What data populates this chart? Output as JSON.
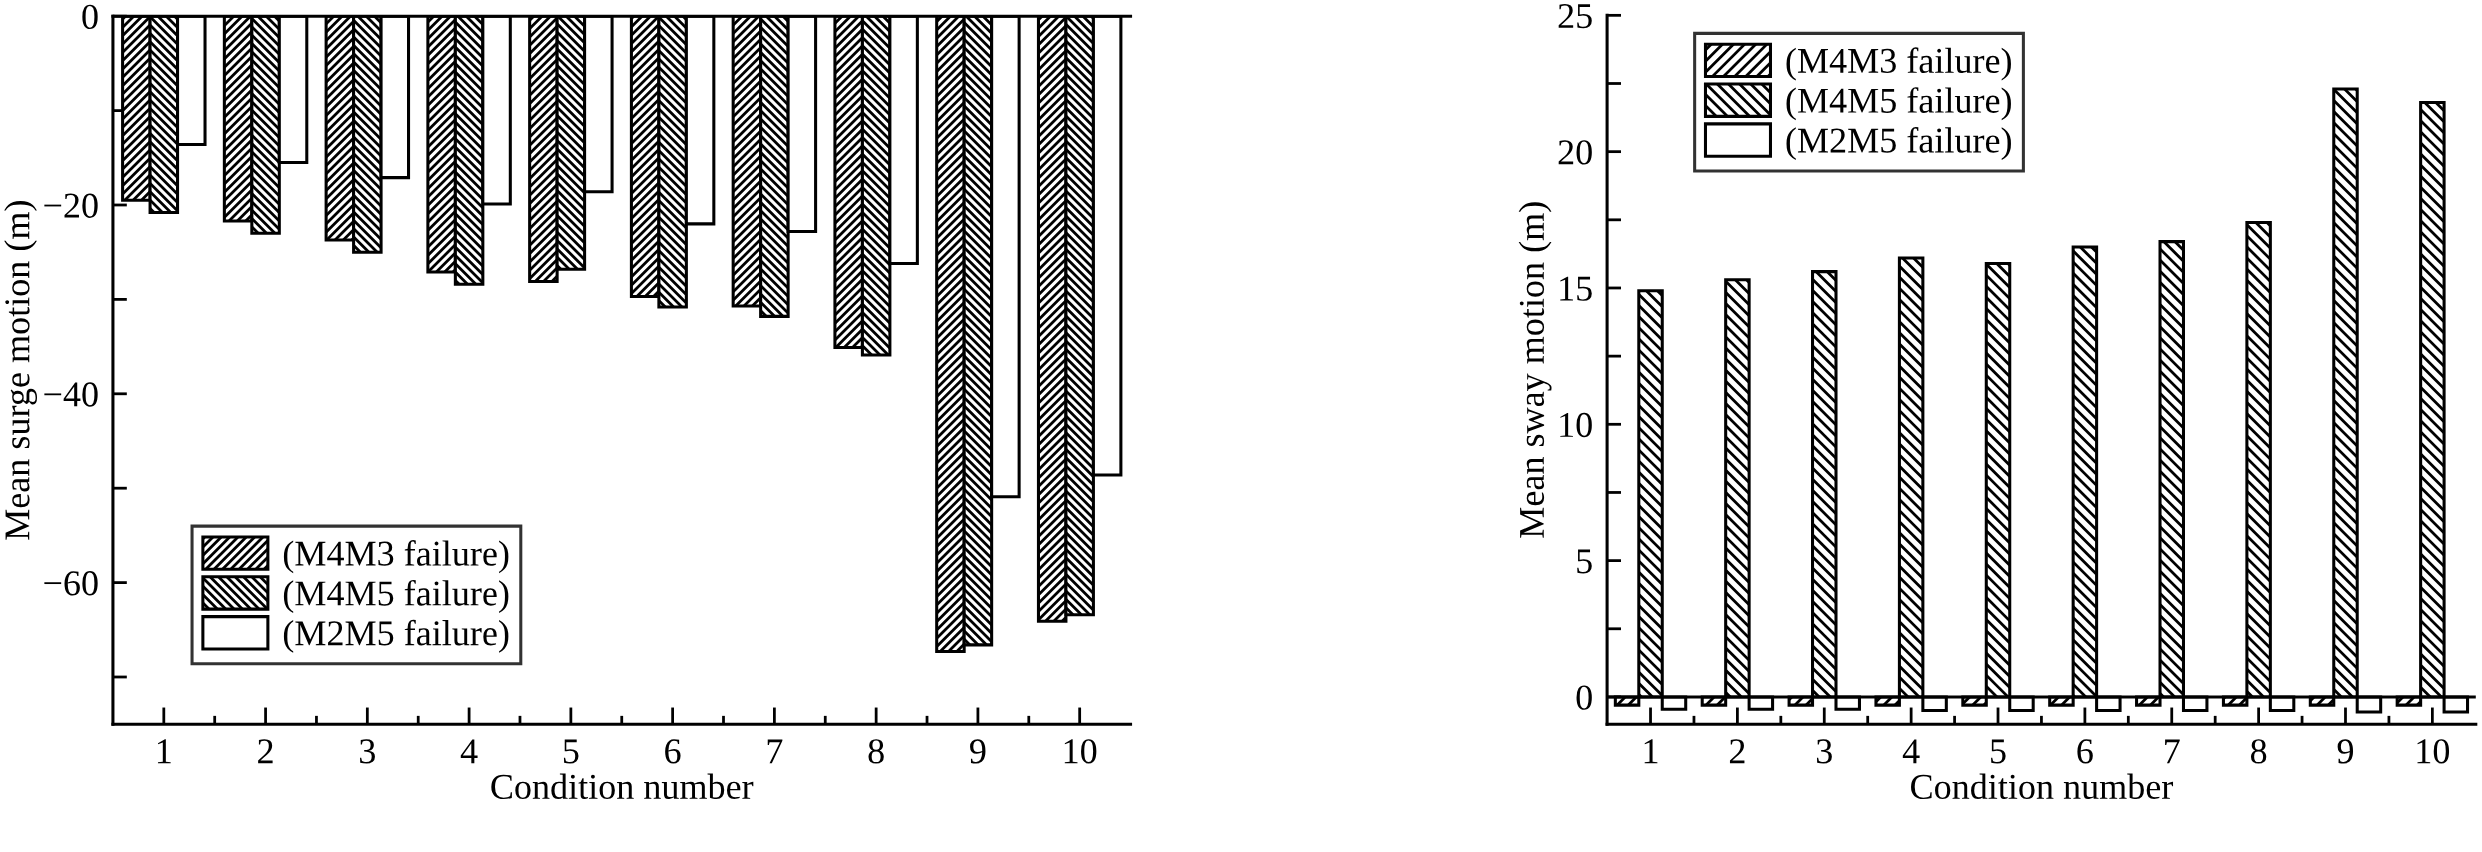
{
  "chart_data": [
    {
      "type": "bar",
      "xlabel": "Condition number",
      "ylabel": "Mean surge motion (m)",
      "categories": [
        "1",
        "2",
        "3",
        "4",
        "5",
        "6",
        "7",
        "8",
        "9",
        "10"
      ],
      "series": [
        {
          "name": "(M4M3 failure)",
          "color": "#000000",
          "values": [
            -19.5,
            -21.7,
            -23.7,
            -27.1,
            -28.1,
            -29.7,
            -30.7,
            -35.1,
            -67.3,
            -64.1
          ]
        },
        {
          "name": "(M4M5 failure)",
          "color": "#000000",
          "values": [
            -20.8,
            -23.0,
            -25.0,
            -28.4,
            -26.8,
            -30.8,
            -31.8,
            -35.9,
            -66.6,
            -63.4
          ]
        },
        {
          "name": "(M2M5 failure)",
          "color": "#ffffff",
          "values": [
            -13.6,
            -15.5,
            -17.1,
            -19.9,
            -18.6,
            -22.0,
            -22.8,
            -26.2,
            -50.9,
            -48.6
          ]
        }
      ],
      "ylim": [
        -75,
        0
      ],
      "yticks": [
        0,
        {
          "value": -10,
          "label": null
        },
        -20,
        {
          "value": -30,
          "label": null
        },
        -40,
        {
          "value": -50,
          "label": null
        },
        -60,
        {
          "value": -70,
          "label": null
        }
      ],
      "legend": "bottom left",
      "grid": false
    },
    {
      "type": "bar",
      "xlabel": "Condition number",
      "ylabel": "Mean sway motion (m)",
      "categories": [
        "1",
        "2",
        "3",
        "4",
        "5",
        "6",
        "7",
        "8",
        "9",
        "10"
      ],
      "series": [
        {
          "name": "(M4M3 failure)",
          "color": "#000000",
          "values": [
            -0.3,
            -0.3,
            -0.3,
            -0.3,
            -0.3,
            -0.3,
            -0.3,
            -0.3,
            -0.3,
            -0.3
          ]
        },
        {
          "name": "(M4M5 failure)",
          "color": "#000000",
          "values": [
            14.9,
            15.3,
            15.6,
            16.1,
            15.9,
            16.5,
            16.7,
            17.4,
            22.3,
            21.8
          ]
        },
        {
          "name": "(M2M5 failure)",
          "color": "#ffffff",
          "values": [
            -0.45,
            -0.45,
            -0.45,
            -0.5,
            -0.5,
            -0.5,
            -0.5,
            -0.5,
            -0.55,
            -0.55
          ]
        }
      ],
      "ylim": [
        -1,
        25
      ],
      "yticks": [
        0,
        {
          "value": 2.5,
          "label": null
        },
        5,
        {
          "value": 7.5,
          "label": null
        },
        10,
        {
          "value": 12.5,
          "label": null
        },
        15,
        {
          "value": 17.5,
          "label": null
        },
        20,
        {
          "value": 22.5,
          "label": null
        },
        25
      ],
      "ref_lines": [
        {
          "axis": "y",
          "value": 0,
          "label": null
        }
      ],
      "legend": "top left",
      "grid": false
    }
  ]
}
